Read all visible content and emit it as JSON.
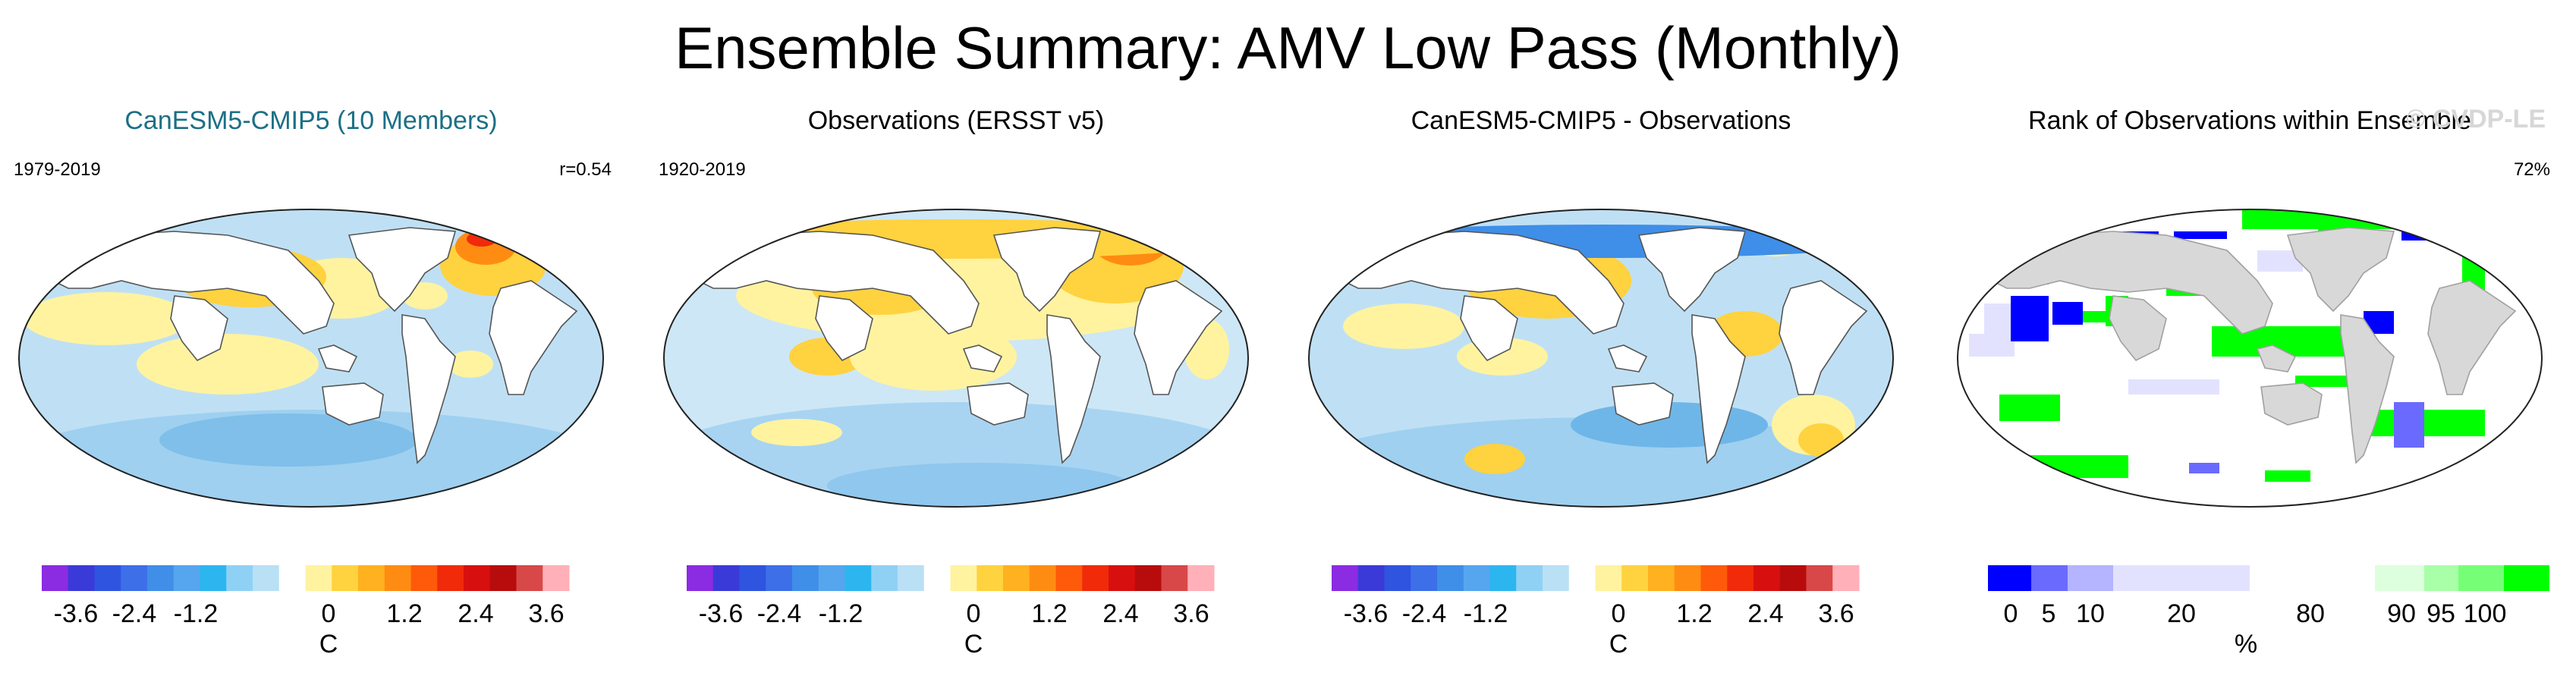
{
  "figure_title": "Ensemble Summary: AMV Low Pass (Monthly)",
  "watermark": "© CVDP-LE",
  "colors": {
    "warm_scale": [
      "#8b2be2",
      "#3a3ad8",
      "#2f54e0",
      "#3d6fe8",
      "#3f8ee8",
      "#55a6ee",
      "#2cb6f0",
      "#8fd1f5",
      "#b9e0f5",
      "#ffffff",
      "#fff3a0",
      "#ffd23f",
      "#ffb11f",
      "#ff8c12",
      "#ff5a0a",
      "#f12a0a",
      "#d80f0f",
      "#b80c0c",
      "#d84848",
      "#ffb0b8"
    ],
    "rank_scale": [
      "#0000ff",
      "#6a6aff",
      "#b4b4ff",
      "#e2e2ff",
      "#ffffff",
      "#ddffdd",
      "#a8ffa8",
      "#76ff76",
      "#00ff00"
    ],
    "land": "#d8d8d8",
    "ocean_white": "#ffffff"
  },
  "chart_data": [
    {
      "type": "heatmap",
      "title": "CanESM5-CMIP5 (10 Members)",
      "left_label": "1979-2019",
      "right_label": "r=0.54",
      "colorbar": {
        "ticks": [
          "-3.6",
          "-2.4",
          "-1.2",
          "0",
          "1.2",
          "2.4",
          "3.6"
        ],
        "units": "C",
        "range": [
          -4.2,
          4.2
        ],
        "step": 0.4
      }
    },
    {
      "type": "heatmap",
      "title": "Observations (ERSST v5)",
      "left_label": "1920-2019",
      "right_label": "",
      "colorbar": {
        "ticks": [
          "-3.6",
          "-2.4",
          "-1.2",
          "0",
          "1.2",
          "2.4",
          "3.6"
        ],
        "units": "C",
        "range": [
          -4.2,
          4.2
        ],
        "step": 0.4
      }
    },
    {
      "type": "heatmap",
      "title": "CanESM5-CMIP5 - Observations",
      "left_label": "",
      "right_label": "",
      "colorbar": {
        "ticks": [
          "-3.6",
          "-2.4",
          "-1.2",
          "0",
          "1.2",
          "2.4",
          "3.6"
        ],
        "units": "C",
        "range": [
          -4.2,
          4.2
        ],
        "step": 0.4
      }
    },
    {
      "type": "heatmap",
      "title": "Rank of Observations within Ensemble",
      "left_label": "",
      "right_label": "72%",
      "colorbar": {
        "ticks": [
          "0",
          "5",
          "10",
          "20",
          "80",
          "90",
          "95",
          "100"
        ],
        "units": "%"
      }
    }
  ]
}
